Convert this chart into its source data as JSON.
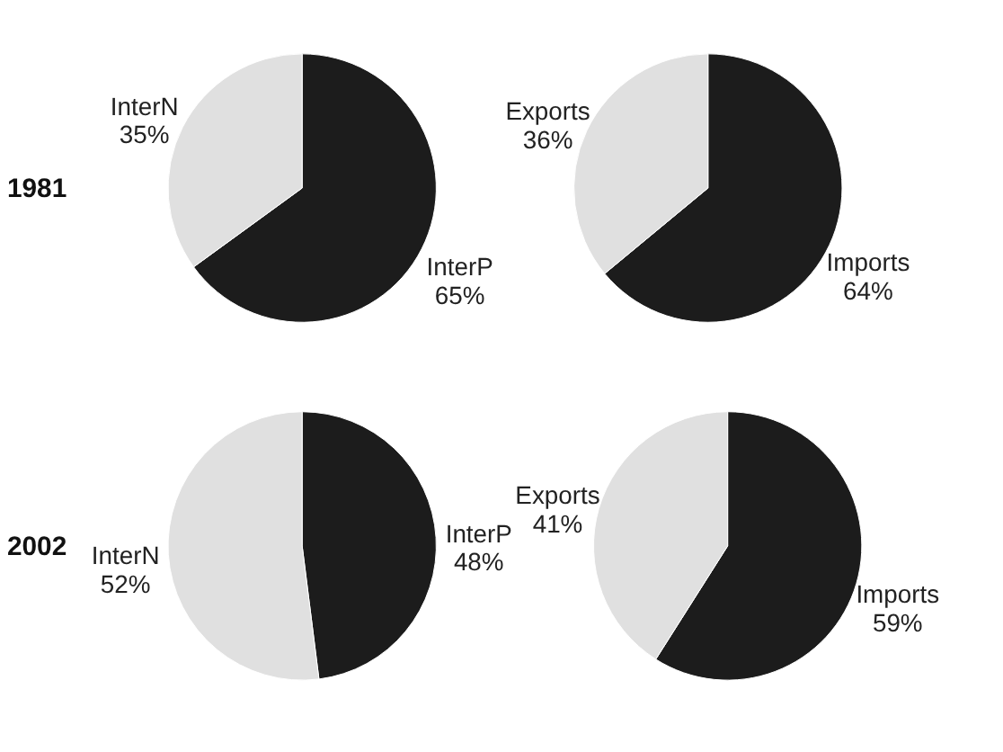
{
  "chart_data": [
    {
      "type": "pie",
      "title": "1981",
      "categories": [
        "InterP",
        "InterN"
      ],
      "values": [
        65,
        35
      ],
      "value_labels": [
        "65%",
        "35%"
      ],
      "colors": [
        "#1c1c1c",
        "#e0e0e0"
      ]
    },
    {
      "type": "pie",
      "categories": [
        "Imports",
        "Exports"
      ],
      "values": [
        64,
        36
      ],
      "value_labels": [
        "64%",
        "36%"
      ],
      "colors": [
        "#1c1c1c",
        "#e0e0e0"
      ]
    },
    {
      "type": "pie",
      "title": "2002",
      "categories": [
        "InterP",
        "InterN"
      ],
      "values": [
        48,
        52
      ],
      "value_labels": [
        "48%",
        "52%"
      ],
      "colors": [
        "#1c1c1c",
        "#e0e0e0"
      ]
    },
    {
      "type": "pie",
      "categories": [
        "Imports",
        "Exports"
      ],
      "values": [
        59,
        41
      ],
      "value_labels": [
        "59%",
        "41%"
      ],
      "colors": [
        "#1c1c1c",
        "#e0e0e0"
      ]
    }
  ]
}
